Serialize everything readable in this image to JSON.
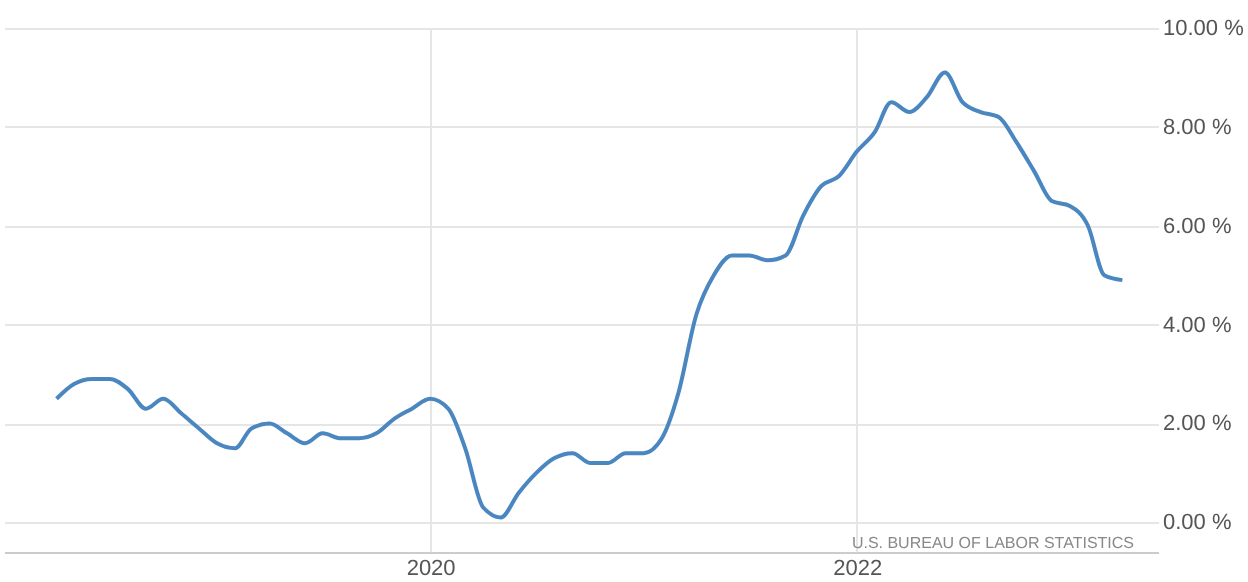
{
  "chart_data": {
    "type": "line",
    "x": [
      "2018-04",
      "2018-05",
      "2018-06",
      "2018-07",
      "2018-08",
      "2018-09",
      "2018-10",
      "2018-11",
      "2018-12",
      "2019-01",
      "2019-02",
      "2019-03",
      "2019-04",
      "2019-05",
      "2019-06",
      "2019-07",
      "2019-08",
      "2019-09",
      "2019-10",
      "2019-11",
      "2019-12",
      "2020-01",
      "2020-02",
      "2020-03",
      "2020-04",
      "2020-05",
      "2020-06",
      "2020-07",
      "2020-08",
      "2020-09",
      "2020-10",
      "2020-11",
      "2020-12",
      "2021-01",
      "2021-02",
      "2021-03",
      "2021-04",
      "2021-05",
      "2021-06",
      "2021-07",
      "2021-08",
      "2021-09",
      "2021-10",
      "2021-11",
      "2021-12",
      "2022-01",
      "2022-02",
      "2022-03",
      "2022-04",
      "2022-05",
      "2022-06",
      "2022-07",
      "2022-08",
      "2022-09",
      "2022-10",
      "2022-11",
      "2022-12",
      "2023-01",
      "2023-02",
      "2023-03",
      "2023-04"
    ],
    "series": [
      {
        "color": "#4a86c0",
        "values": [
          2.5,
          2.8,
          2.9,
          2.9,
          2.7,
          2.3,
          2.5,
          2.2,
          1.9,
          1.6,
          1.5,
          1.9,
          2.0,
          1.8,
          1.6,
          1.8,
          1.7,
          1.7,
          1.8,
          2.1,
          2.3,
          2.5,
          2.3,
          1.5,
          0.3,
          0.1,
          0.6,
          1.0,
          1.3,
          1.4,
          1.2,
          1.2,
          1.4,
          1.4,
          1.7,
          2.6,
          4.2,
          5.0,
          5.4,
          5.4,
          5.3,
          5.4,
          6.2,
          6.8,
          7.0,
          7.5,
          7.9,
          8.5,
          8.3,
          8.6,
          9.1,
          8.5,
          8.3,
          8.2,
          7.7,
          7.1,
          6.5,
          6.4,
          6.0,
          5.0,
          4.9
        ]
      }
    ],
    "xlim": [
      "2018-01",
      "2023-06"
    ],
    "xticks": [
      "2020",
      "2022"
    ],
    "ylim": [
      -0.6,
      10
    ],
    "yticks": [
      {
        "value": 0,
        "label": "0.00 %"
      },
      {
        "value": 2,
        "label": "2.00 %"
      },
      {
        "value": 4,
        "label": "4.00 %"
      },
      {
        "value": 6,
        "label": "6.00 %"
      },
      {
        "value": 8,
        "label": "8.00 %"
      },
      {
        "value": 10,
        "label": "10.00 %"
      }
    ],
    "grid": true,
    "marker": "none",
    "line_style": "solid",
    "annotations": [
      "U.S. BUREAU OF LABOR STATISTICS"
    ]
  }
}
